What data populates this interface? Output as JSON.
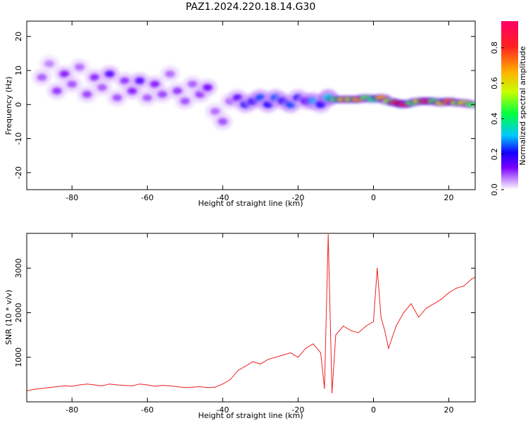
{
  "figure": {
    "title": "PAZ1.2024.220.18.14.G30"
  },
  "chart_data": [
    {
      "type": "heatmap",
      "title": "PAZ1.2024.220.18.14.G30",
      "xlabel": "Height of straight line (km)",
      "ylabel": "Frequency (Hz)",
      "xlim": [
        -92,
        27
      ],
      "ylim": [
        -25,
        24.5
      ],
      "xticks": [
        -80,
        -60,
        -40,
        -20,
        0,
        20
      ],
      "yticks": [
        -20,
        -10,
        0,
        10,
        20
      ],
      "colorbar": {
        "label": "Normalized spectral amplitude",
        "range": [
          0.0,
          0.95
        ],
        "ticks": [
          0.0,
          0.2,
          0.4,
          0.6,
          0.8
        ],
        "colormap": [
          "#ffffff",
          "#c58cff",
          "#7a00ff",
          "#1400ff",
          "#00c8ff",
          "#00ff40",
          "#c8ff00",
          "#ffb000",
          "#ff2020",
          "#ff0066"
        ]
      },
      "blobs": [
        {
          "x": -88,
          "y": 8,
          "v": 0.15
        },
        {
          "x": -86,
          "y": 12,
          "v": 0.12
        },
        {
          "x": -84,
          "y": 4,
          "v": 0.18
        },
        {
          "x": -82,
          "y": 9,
          "v": 0.2
        },
        {
          "x": -80,
          "y": 6,
          "v": 0.16
        },
        {
          "x": -78,
          "y": 11,
          "v": 0.14
        },
        {
          "x": -76,
          "y": 3,
          "v": 0.17
        },
        {
          "x": -74,
          "y": 8,
          "v": 0.19
        },
        {
          "x": -72,
          "y": 5,
          "v": 0.15
        },
        {
          "x": -70,
          "y": 9,
          "v": 0.25
        },
        {
          "x": -68,
          "y": 2,
          "v": 0.16
        },
        {
          "x": -66,
          "y": 7,
          "v": 0.18
        },
        {
          "x": -64,
          "y": 4,
          "v": 0.2
        },
        {
          "x": -62,
          "y": 7,
          "v": 0.25
        },
        {
          "x": -60,
          "y": 2,
          "v": 0.15
        },
        {
          "x": -58,
          "y": 6,
          "v": 0.2
        },
        {
          "x": -56,
          "y": 3,
          "v": 0.17
        },
        {
          "x": -54,
          "y": 9,
          "v": 0.14
        },
        {
          "x": -52,
          "y": 4,
          "v": 0.18
        },
        {
          "x": -50,
          "y": 1,
          "v": 0.16
        },
        {
          "x": -48,
          "y": 6,
          "v": 0.15
        },
        {
          "x": -46,
          "y": 3,
          "v": 0.18
        },
        {
          "x": -44,
          "y": 5,
          "v": 0.22
        },
        {
          "x": -42,
          "y": -2,
          "v": 0.14
        },
        {
          "x": -40,
          "y": -5,
          "v": 0.16
        },
        {
          "x": -38,
          "y": 1,
          "v": 0.15
        },
        {
          "x": -36,
          "y": 2,
          "v": 0.25
        },
        {
          "x": -34,
          "y": 0,
          "v": 0.3
        },
        {
          "x": -32,
          "y": 1,
          "v": 0.3
        },
        {
          "x": -30,
          "y": 2,
          "v": 0.35
        },
        {
          "x": -28,
          "y": 0,
          "v": 0.3
        },
        {
          "x": -26,
          "y": 2,
          "v": 0.35
        },
        {
          "x": -24,
          "y": 1,
          "v": 0.3
        },
        {
          "x": -22,
          "y": 0,
          "v": 0.35
        },
        {
          "x": -20,
          "y": 2,
          "v": 0.3
        },
        {
          "x": -18,
          "y": 1,
          "v": 0.25
        },
        {
          "x": -16,
          "y": 1,
          "v": 0.4
        },
        {
          "x": -14,
          "y": 0,
          "v": 0.3
        },
        {
          "x": -12,
          "y": 2,
          "v": 0.45
        },
        {
          "x": -10,
          "y": 1.5,
          "v": 0.55
        },
        {
          "x": -8,
          "y": 1.5,
          "v": 0.7
        },
        {
          "x": -6,
          "y": 1.5,
          "v": 0.6
        },
        {
          "x": -4,
          "y": 1.5,
          "v": 0.75
        },
        {
          "x": -2,
          "y": 2,
          "v": 0.55
        },
        {
          "x": 0,
          "y": 1.5,
          "v": 0.5
        },
        {
          "x": 2,
          "y": 2,
          "v": 0.75
        },
        {
          "x": 4,
          "y": 1,
          "v": 0.6
        },
        {
          "x": 6,
          "y": 0.5,
          "v": 0.85
        },
        {
          "x": 8,
          "y": 0,
          "v": 0.9
        },
        {
          "x": 10,
          "y": 0.5,
          "v": 0.55
        },
        {
          "x": 12,
          "y": 1,
          "v": 0.65
        },
        {
          "x": 14,
          "y": 1,
          "v": 0.9
        },
        {
          "x": 16,
          "y": 1,
          "v": 0.55
        },
        {
          "x": 18,
          "y": 0.5,
          "v": 0.7
        },
        {
          "x": 20,
          "y": 1,
          "v": 0.8
        },
        {
          "x": 22,
          "y": 0.5,
          "v": 0.6
        },
        {
          "x": 24,
          "y": 0.5,
          "v": 0.65
        },
        {
          "x": 26,
          "y": 0,
          "v": 0.55
        }
      ]
    },
    {
      "type": "line",
      "xlabel": "Height of straight line (km)",
      "ylabel": "SNR (10 * v/v)",
      "xlim": [
        -92,
        27
      ],
      "ylim": [
        0,
        3780
      ],
      "xticks": [
        -80,
        -60,
        -40,
        -20,
        0,
        20
      ],
      "yticks": [
        1000,
        2000,
        3000
      ],
      "series": [
        {
          "color": "#ee2222",
          "x": [
            -92,
            -90,
            -88,
            -86,
            -84,
            -82,
            -80,
            -78,
            -76,
            -74,
            -72,
            -70,
            -68,
            -66,
            -64,
            -62,
            -60,
            -58,
            -56,
            -54,
            -52,
            -50,
            -48,
            -46,
            -44,
            -42,
            -40,
            -38,
            -36,
            -34,
            -32,
            -30,
            -28,
            -26,
            -24,
            -22,
            -20,
            -18,
            -16,
            -14,
            -13,
            -12,
            -11,
            -10,
            -8,
            -6,
            -4,
            -2,
            0,
            1,
            2,
            3,
            4,
            6,
            8,
            10,
            12,
            14,
            16,
            18,
            20,
            22,
            24,
            26,
            27
          ],
          "y": [
            250,
            280,
            300,
            320,
            340,
            360,
            350,
            380,
            400,
            380,
            360,
            400,
            380,
            370,
            360,
            400,
            380,
            350,
            370,
            360,
            340,
            320,
            330,
            340,
            320,
            330,
            400,
            500,
            700,
            800,
            900,
            850,
            950,
            1000,
            1050,
            1100,
            1000,
            1200,
            1300,
            1100,
            300,
            3750,
            200,
            1500,
            1700,
            1600,
            1550,
            1700,
            1800,
            3000,
            1900,
            1600,
            1200,
            1700,
            2000,
            2200,
            1900,
            2100,
            2200,
            2300,
            2450,
            2550,
            2600,
            2750,
            2800
          ]
        }
      ]
    }
  ]
}
